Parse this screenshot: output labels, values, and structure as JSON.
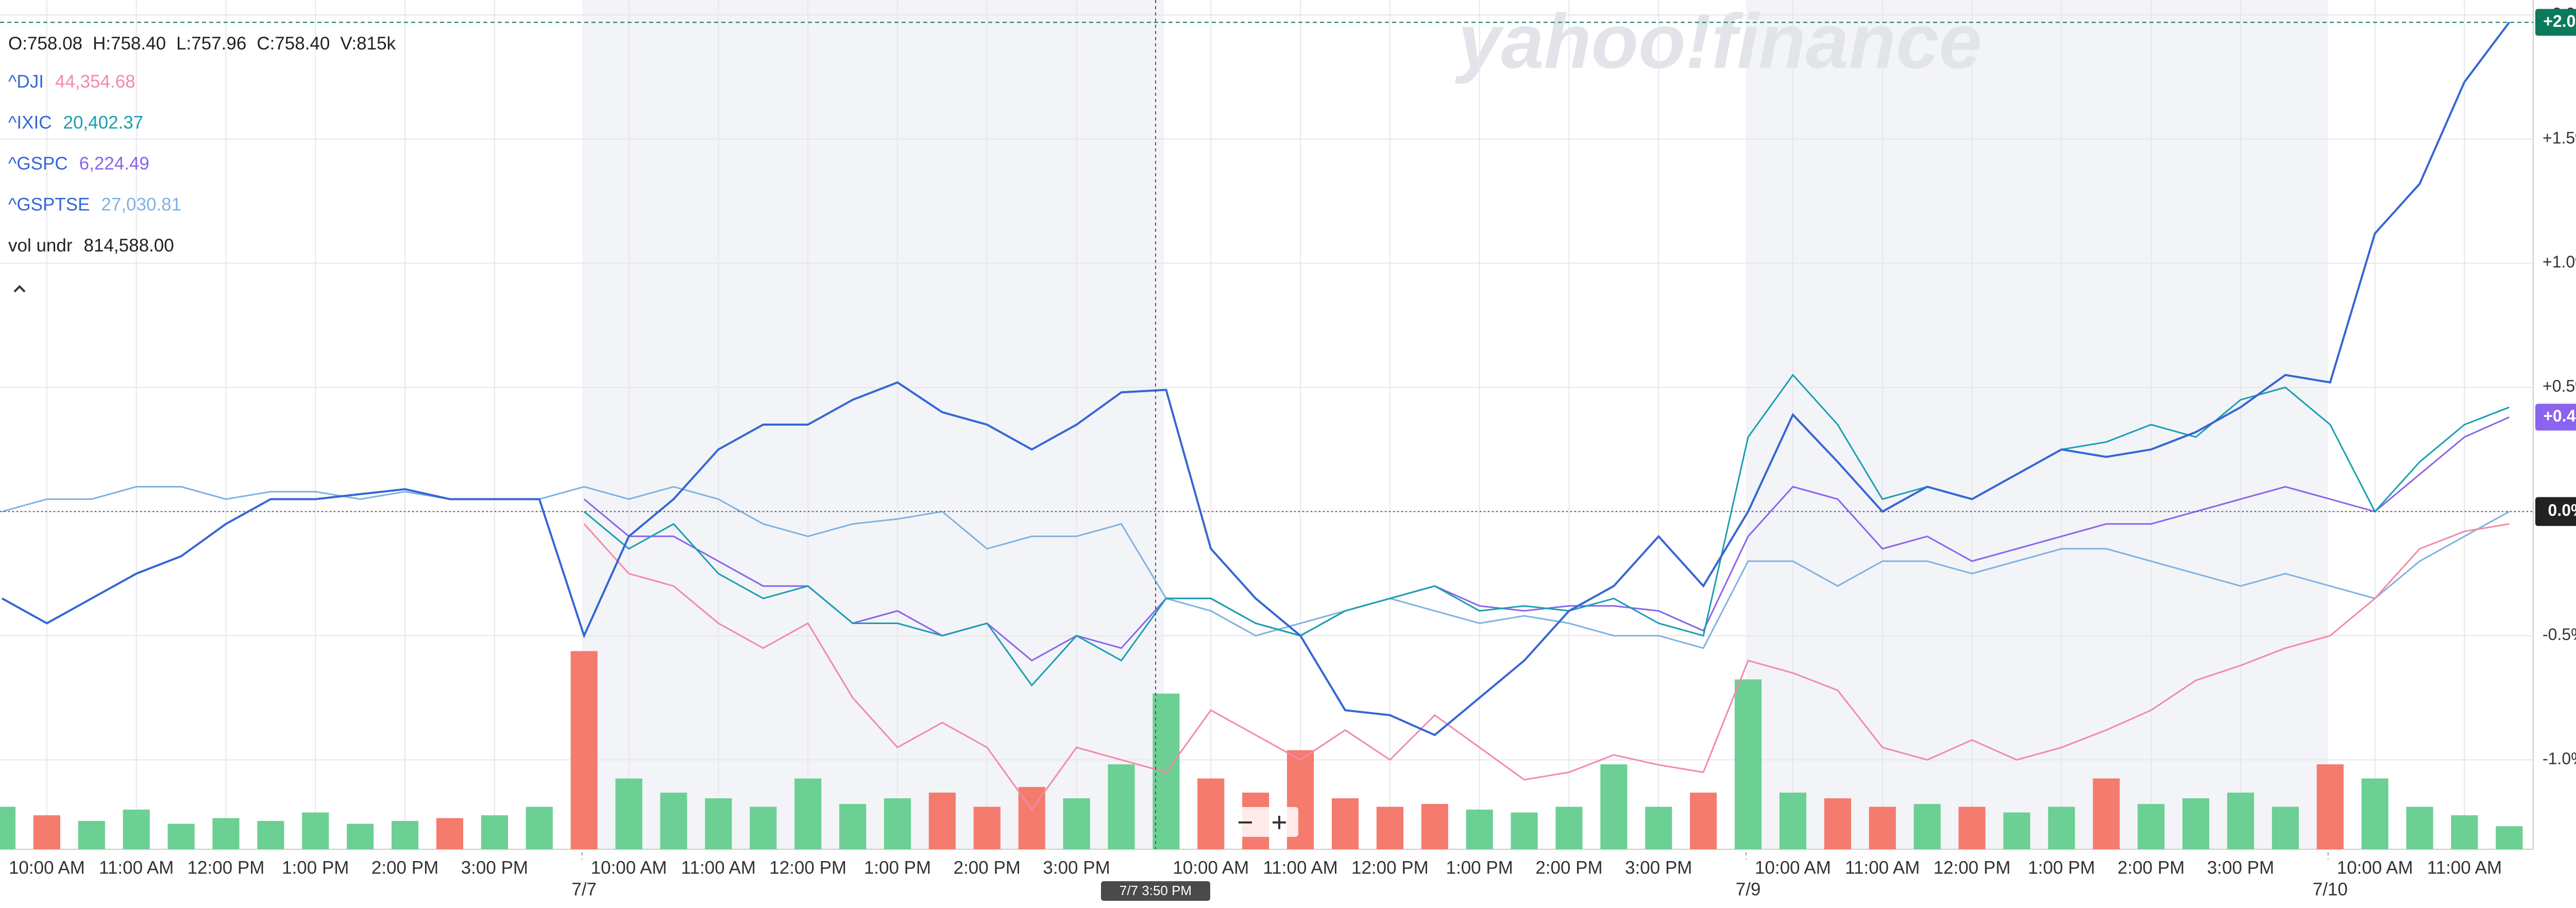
{
  "chart_data": {
    "type": "line",
    "watermark": "yahoo!finance",
    "ohlc": [
      "O:758.08",
      "H:758.40",
      "L:757.96",
      "C:758.40",
      "V:815k"
    ],
    "categories": [
      null,
      "10:00 AM",
      null,
      "11:00 AM",
      null,
      "12:00 PM",
      null,
      "1:00 PM",
      null,
      "2:00 PM",
      null,
      "3:00 PM",
      null,
      null,
      "10:00 AM",
      null,
      "11:00 AM",
      null,
      "12:00 PM",
      null,
      "1:00 PM",
      null,
      "2:00 PM",
      null,
      "3:00 PM",
      null,
      null,
      "10:00 AM",
      null,
      "11:00 AM",
      null,
      "12:00 PM",
      null,
      "1:00 PM",
      null,
      "2:00 PM",
      null,
      "3:00 PM",
      null,
      null,
      "10:00 AM",
      null,
      "11:00 AM",
      null,
      "12:00 PM",
      null,
      "1:00 PM",
      null,
      "2:00 PM",
      null,
      "3:00 PM",
      null,
      null,
      "10:00 AM",
      null,
      "11:00 AM",
      null
    ],
    "dates": [
      null,
      null,
      null,
      null,
      null,
      null,
      null,
      null,
      null,
      null,
      null,
      null,
      null,
      "7/7",
      null,
      null,
      null,
      null,
      null,
      null,
      null,
      null,
      null,
      null,
      null,
      null,
      null,
      null,
      null,
      null,
      null,
      null,
      null,
      null,
      null,
      null,
      null,
      null,
      null,
      "7/9",
      null,
      null,
      null,
      null,
      null,
      null,
      null,
      null,
      null,
      null,
      null,
      null,
      "7/10",
      null,
      null,
      null,
      null
    ],
    "ylim": [
      -1.36,
      2.06
    ],
    "yticks": [
      {
        "value": 2.0,
        "label": "+2.0%"
      },
      {
        "value": 1.5,
        "label": "+1.5%"
      },
      {
        "value": 1.0,
        "label": "+1.0%"
      },
      {
        "value": 0.5,
        "label": "+0.5%"
      },
      {
        "value": 0,
        "label": "0.0%"
      },
      {
        "value": -0.5,
        "label": "-0.5%"
      },
      {
        "value": -1.0,
        "label": "-1.0%"
      }
    ],
    "grid": true,
    "crosshair": {
      "x_label": "7/7 3:50 PM",
      "y": {
        "value": 0,
        "label": "0.0%"
      }
    },
    "series": [
      {
        "color": "#3566d6",
        "last_label": "+2.0%",
        "badge_color": "#0b7a5c",
        "values": [
          -0.35,
          -0.45,
          -0.35,
          -0.25,
          -0.18,
          -0.05,
          0.05,
          0.05,
          0.07,
          0.09,
          0.05,
          0.05,
          0.05,
          -0.5,
          -0.1,
          0.05,
          0.25,
          0.35,
          0.35,
          0.45,
          0.52,
          0.4,
          0.35,
          0.25,
          0.35,
          0.48,
          0.49,
          -0.15,
          -0.35,
          -0.5,
          -0.8,
          -0.82,
          -0.9,
          -0.75,
          -0.6,
          -0.4,
          -0.3,
          -0.1,
          -0.3,
          0.0,
          0.39,
          0.2,
          0.0,
          0.1,
          0.05,
          0.15,
          0.25,
          0.22,
          0.25,
          0.32,
          0.42,
          0.55,
          0.52,
          1.12,
          1.32,
          1.73,
          1.97
        ]
      },
      {
        "name": "^DJI",
        "legend_value": "44,354.68",
        "color": "#f38aa6",
        "values": [
          null,
          null,
          null,
          null,
          null,
          null,
          null,
          null,
          null,
          null,
          null,
          null,
          null,
          -0.05,
          -0.25,
          -0.3,
          -0.45,
          -0.55,
          -0.45,
          -0.75,
          -0.95,
          -0.85,
          -0.95,
          -1.2,
          -0.95,
          -1.0,
          -1.05,
          -0.8,
          -0.9,
          -1.0,
          -0.88,
          -1.0,
          -0.82,
          -0.95,
          -1.08,
          -1.05,
          -0.98,
          -1.02,
          -1.05,
          -0.6,
          -0.65,
          -0.72,
          -0.95,
          -1.0,
          -0.92,
          -1.0,
          -0.95,
          -0.88,
          -0.8,
          -0.68,
          -0.62,
          -0.55,
          -0.5,
          -0.35,
          -0.15,
          -0.08,
          -0.05
        ]
      },
      {
        "name": "^IXIC",
        "legend_value": "20,402.37",
        "color": "#1a9fb0",
        "values": [
          null,
          null,
          null,
          null,
          null,
          null,
          null,
          null,
          null,
          null,
          null,
          null,
          null,
          0.0,
          -0.15,
          -0.05,
          -0.25,
          -0.35,
          -0.3,
          -0.45,
          -0.45,
          -0.5,
          -0.45,
          -0.7,
          -0.5,
          -0.6,
          -0.35,
          -0.35,
          -0.45,
          -0.5,
          -0.4,
          -0.35,
          -0.3,
          -0.4,
          -0.38,
          -0.4,
          -0.35,
          -0.45,
          -0.5,
          0.3,
          0.55,
          0.35,
          0.05,
          0.1,
          0.05,
          0.15,
          0.25,
          0.28,
          0.35,
          0.3,
          0.45,
          0.5,
          0.35,
          0.0,
          0.2,
          0.35,
          0.42
        ]
      },
      {
        "name": "^GSPC",
        "legend_value": "6,224.49",
        "color": "#8a63ee",
        "last_label": "+0.4%",
        "badge_color": "#8a63ee",
        "values": [
          null,
          null,
          null,
          null,
          null,
          null,
          null,
          null,
          null,
          null,
          null,
          null,
          null,
          0.05,
          -0.1,
          -0.1,
          -0.2,
          -0.3,
          -0.3,
          -0.45,
          -0.4,
          -0.5,
          -0.45,
          -0.6,
          -0.5,
          -0.55,
          -0.35,
          -0.35,
          -0.45,
          -0.5,
          -0.4,
          -0.35,
          -0.3,
          -0.38,
          -0.4,
          -0.38,
          -0.38,
          -0.4,
          -0.48,
          -0.1,
          0.1,
          0.05,
          -0.15,
          -0.1,
          -0.2,
          -0.15,
          -0.1,
          -0.05,
          -0.05,
          0.0,
          0.05,
          0.1,
          0.05,
          0.0,
          0.15,
          0.3,
          0.38
        ]
      },
      {
        "name": "^GSPTSE",
        "legend_value": "27,030.81",
        "color": "#80b2e0",
        "values": [
          0.0,
          0.05,
          0.05,
          0.1,
          0.1,
          0.05,
          0.08,
          0.08,
          0.05,
          0.08,
          0.05,
          0.05,
          0.05,
          0.1,
          0.05,
          0.1,
          0.05,
          -0.05,
          -0.1,
          -0.05,
          -0.03,
          0.0,
          -0.15,
          -0.1,
          -0.1,
          -0.05,
          -0.35,
          -0.4,
          -0.5,
          -0.45,
          -0.4,
          -0.35,
          -0.4,
          -0.45,
          -0.42,
          -0.45,
          -0.5,
          -0.5,
          -0.55,
          -0.2,
          -0.2,
          -0.3,
          -0.2,
          -0.2,
          -0.25,
          -0.2,
          -0.15,
          -0.15,
          -0.2,
          -0.25,
          -0.3,
          -0.25,
          -0.3,
          -0.35,
          -0.2,
          -0.1,
          0.0
        ]
      }
    ],
    "volume": {
      "name": "vol undr",
      "legend_value": "814,588.00",
      "ylim": [
        0,
        30000000
      ],
      "up_color": "#6ccf94",
      "down_color": "#f47b6d",
      "values": [
        1500000,
        1200000,
        1000000,
        1400000,
        900000,
        1100000,
        1000000,
        1300000,
        900000,
        1000000,
        1100000,
        1200000,
        1500000,
        7000000,
        2500000,
        2000000,
        1800000,
        1500000,
        2500000,
        1600000,
        1800000,
        2000000,
        1500000,
        2200000,
        1800000,
        3000000,
        5500000,
        2500000,
        2000000,
        3500000,
        1800000,
        1500000,
        1600000,
        1400000,
        1300000,
        1500000,
        3000000,
        1500000,
        2000000,
        6000000,
        2000000,
        1800000,
        1500000,
        1600000,
        1500000,
        1300000,
        1500000,
        2500000,
        1600000,
        1800000,
        2000000,
        1500000,
        3000000,
        2500000,
        1500000,
        1200000,
        814588
      ]
    }
  }
}
